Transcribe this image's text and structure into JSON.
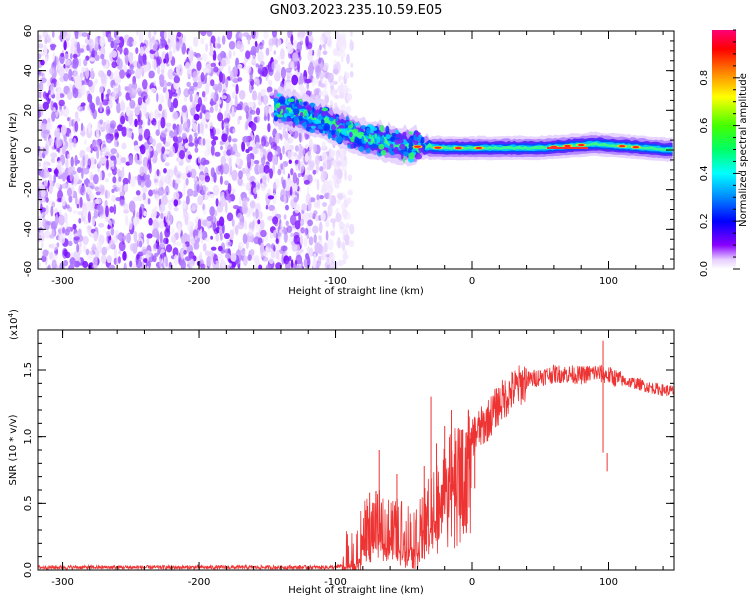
{
  "title": "GN03.2023.235.10.59.E05",
  "chart_data": [
    {
      "type": "heatmap",
      "xlabel": "Height of straight line (km)",
      "ylabel": "Frequency (Hz)",
      "xlim": [
        -318,
        148
      ],
      "ylim": [
        -60,
        60
      ],
      "xticks": [
        -300,
        -200,
        -100,
        0,
        100
      ],
      "xtick_labels": [
        "-300",
        "-200",
        "-100",
        "0",
        "100"
      ],
      "yticks": [
        -60,
        -40,
        -20,
        0,
        20,
        40,
        60
      ],
      "ytick_labels": [
        "-60",
        "-40",
        "-20",
        "0",
        "20",
        "40",
        "60"
      ],
      "noise_region_km": [
        -318,
        -98
      ],
      "signal_band": {
        "description_points": [
          {
            "x": -145,
            "f": 22
          },
          {
            "x": -110,
            "f": 15
          },
          {
            "x": -80,
            "f": 6
          },
          {
            "x": -50,
            "f": 2
          },
          {
            "x": -20,
            "f": 1
          },
          {
            "x": 0,
            "f": 1
          },
          {
            "x": 50,
            "f": 1
          },
          {
            "x": 90,
            "f": 3
          },
          {
            "x": 148,
            "f": 0
          }
        ],
        "peak_bins_km": [
          -40,
          -25,
          -10,
          5,
          60,
          70,
          80,
          110,
          120
        ]
      },
      "colorbar": {
        "label": "Normalized spectral amplitude",
        "ticks": [
          0.0,
          0.2,
          0.4,
          0.6,
          0.8
        ],
        "tick_labels": [
          "0.0",
          "0.2",
          "0.4",
          "0.6",
          "0.8"
        ],
        "range": [
          0,
          1
        ]
      }
    },
    {
      "type": "line",
      "xlabel": "Height of straight line (km)",
      "ylabel": "SNR (10 * v/v)",
      "y_multiplier": "(x10",
      "y_multiplier_exp": "4",
      "y_multiplier_close": ")",
      "xlim": [
        -318,
        148
      ],
      "ylim": [
        0,
        18000
      ],
      "xticks": [
        -300,
        -200,
        -100,
        0,
        100
      ],
      "xtick_labels": [
        "-300",
        "-200",
        "-100",
        "0",
        "100"
      ],
      "yticks": [
        0,
        5000,
        10000,
        15000
      ],
      "ytick_labels": [
        "0.0",
        "0.5",
        "1.0",
        "1.5"
      ],
      "color": "#ee3333",
      "series": [
        {
          "name": "SNR",
          "envelope_x": [
            -318,
            -100,
            -85,
            -80,
            -70,
            -60,
            -50,
            -40,
            -30,
            -25,
            -20,
            -10,
            0,
            10,
            20,
            30,
            40,
            50,
            60,
            70,
            80,
            90,
            100,
            110,
            120,
            130,
            140,
            148
          ],
          "envelope_y": [
            200,
            200,
            600,
            2500,
            3500,
            3000,
            2800,
            2500,
            5000,
            6000,
            7000,
            8500,
            10000,
            11000,
            12500,
            13500,
            14200,
            14500,
            14700,
            14700,
            14600,
            14800,
            14600,
            14200,
            14000,
            13700,
            13500,
            13400
          ],
          "spikes": [
            {
              "x": -68,
              "y": 9000
            },
            {
              "x": -75,
              "y": 5800
            },
            {
              "x": -55,
              "y": 7200
            },
            {
              "x": -35,
              "y": 7800
            },
            {
              "x": -30,
              "y": 13000
            },
            {
              "x": -26,
              "y": 9500
            },
            {
              "x": -20,
              "y": 10800
            },
            {
              "x": -15,
              "y": 12000
            },
            {
              "x": -8,
              "y": 10500
            },
            {
              "x": 2,
              "y": 11000
            },
            {
              "x": 96,
              "y": 17200
            },
            {
              "x": 99,
              "y": 7400
            }
          ]
        }
      ]
    }
  ]
}
